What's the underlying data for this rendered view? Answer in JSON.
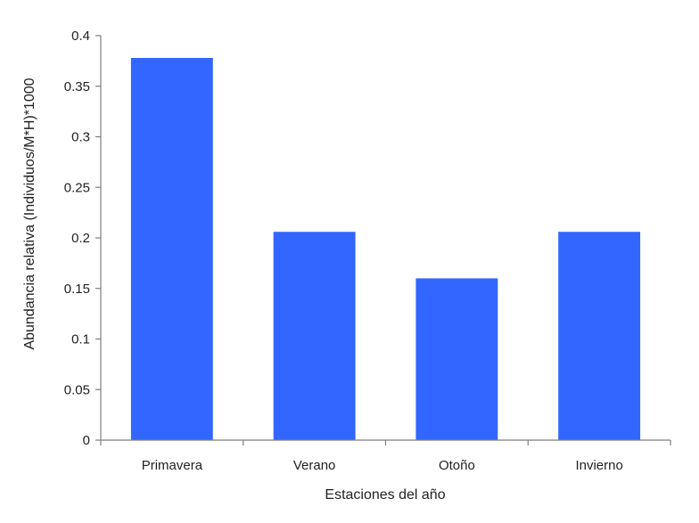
{
  "chart_data": {
    "type": "bar",
    "title": "",
    "xlabel": "Estaciones del año",
    "ylabel": "Abundancia relativa (Individuos/M*H)*1000",
    "categories": [
      "Primavera",
      "Verano",
      "Otoño",
      "Invierno"
    ],
    "values": [
      0.378,
      0.206,
      0.16,
      0.206
    ],
    "ylim": [
      0,
      0.4
    ],
    "yticks": [
      "0",
      "0.05",
      "0.1",
      "0.15",
      "0.2",
      "0.25",
      "0.3",
      "0.35",
      "0.4"
    ],
    "grid": false,
    "legend": "none",
    "bar_color": "#3366FF",
    "axis_color": "#7f7f7f"
  }
}
